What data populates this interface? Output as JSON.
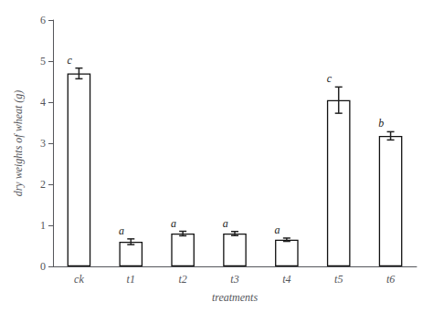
{
  "chart_data": {
    "type": "bar",
    "categories": [
      "ck",
      "t1",
      "t2",
      "t3",
      "t4",
      "t5",
      "t6"
    ],
    "values": [
      4.7,
      0.6,
      0.8,
      0.8,
      0.65,
      4.05,
      3.18
    ],
    "errors": [
      0.13,
      0.07,
      0.055,
      0.05,
      0.04,
      0.32,
      0.1
    ],
    "letters": [
      "c",
      "a",
      "a",
      "a",
      "a",
      "c",
      "b"
    ],
    "color": "#ffffff",
    "xlabel": "treatments",
    "ylabel": "dry weights of wheat (g)",
    "ylim": [
      0,
      6
    ],
    "yticks": [
      0,
      1,
      2,
      3,
      4,
      5,
      6
    ],
    "grid": false
  }
}
